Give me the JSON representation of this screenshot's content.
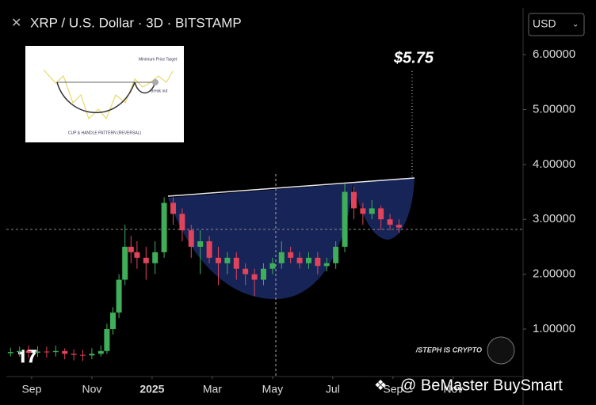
{
  "chart_data": {
    "type": "candlestick",
    "title": "XRP / U.S. Dollar · 3D · BITSTAMP",
    "currency": "USD",
    "up_color": "#3fae5a",
    "down_color": "#e0435a",
    "xlim": [
      -0.84,
      16.32
    ],
    "xticks": [
      {
        "value": 0,
        "label": "Sep"
      },
      {
        "value": 2,
        "label": "Nov"
      },
      {
        "value": 4,
        "label": "2025"
      },
      {
        "value": 6,
        "label": "Mar"
      },
      {
        "value": 8,
        "label": "May"
      },
      {
        "value": 10,
        "label": "Jul"
      },
      {
        "value": 12,
        "label": "Sep"
      },
      {
        "value": 14,
        "label": "Nov"
      }
    ],
    "ylim": [
      0.15,
      6.78
    ],
    "yticks": [
      {
        "value": 1,
        "label": "1.00000"
      },
      {
        "value": 2,
        "label": "2.00000"
      },
      {
        "value": 3,
        "label": "3.00000"
      },
      {
        "value": 4,
        "label": "4.00000"
      },
      {
        "value": 5,
        "label": "5.00000"
      },
      {
        "value": 6,
        "label": "6.00000"
      }
    ],
    "candles": [
      [
        -0.7,
        0.56,
        0.66,
        0.5,
        0.58
      ],
      [
        -0.4,
        0.58,
        0.68,
        0.5,
        0.6
      ],
      [
        -0.1,
        0.6,
        0.7,
        0.47,
        0.57
      ],
      [
        0.2,
        0.57,
        0.69,
        0.49,
        0.59
      ],
      [
        0.5,
        0.59,
        0.68,
        0.48,
        0.58
      ],
      [
        0.8,
        0.58,
        0.7,
        0.5,
        0.6
      ],
      [
        1.1,
        0.6,
        0.65,
        0.45,
        0.55
      ],
      [
        1.4,
        0.55,
        0.63,
        0.43,
        0.53
      ],
      [
        1.7,
        0.53,
        0.62,
        0.42,
        0.52
      ],
      [
        2.0,
        0.52,
        0.65,
        0.45,
        0.55
      ],
      [
        2.3,
        0.55,
        0.7,
        0.5,
        0.6
      ],
      [
        2.5,
        0.6,
        1.1,
        0.55,
        1.0
      ],
      [
        2.7,
        1.0,
        1.4,
        0.9,
        1.3
      ],
      [
        2.9,
        1.3,
        2.0,
        1.2,
        1.9
      ],
      [
        3.1,
        1.9,
        2.9,
        1.8,
        2.5
      ],
      [
        3.3,
        2.5,
        2.7,
        2.2,
        2.4
      ],
      [
        3.5,
        2.4,
        2.6,
        2.1,
        2.3
      ],
      [
        3.8,
        2.3,
        2.5,
        1.9,
        2.2
      ],
      [
        4.1,
        2.2,
        2.6,
        2.0,
        2.4
      ],
      [
        4.4,
        2.4,
        3.4,
        2.3,
        3.3
      ],
      [
        4.7,
        3.3,
        3.4,
        2.9,
        3.1
      ],
      [
        5.0,
        3.1,
        3.2,
        2.6,
        2.8
      ],
      [
        5.3,
        2.8,
        2.9,
        2.3,
        2.5
      ],
      [
        5.6,
        2.5,
        2.8,
        2.0,
        2.6
      ],
      [
        5.9,
        2.6,
        2.7,
        2.2,
        2.3
      ],
      [
        6.2,
        2.3,
        2.5,
        1.8,
        2.2
      ],
      [
        6.5,
        2.2,
        2.4,
        2.0,
        2.3
      ],
      [
        6.8,
        2.3,
        2.4,
        1.9,
        2.1
      ],
      [
        7.1,
        2.1,
        2.2,
        1.8,
        2.0
      ],
      [
        7.4,
        2.0,
        2.1,
        1.6,
        1.9
      ],
      [
        7.7,
        1.9,
        2.2,
        1.8,
        2.1
      ],
      [
        8.0,
        2.1,
        2.3,
        2.0,
        2.2
      ],
      [
        8.3,
        2.2,
        2.6,
        2.1,
        2.4
      ],
      [
        8.6,
        2.4,
        2.5,
        2.2,
        2.3
      ],
      [
        8.9,
        2.3,
        2.4,
        2.1,
        2.2
      ],
      [
        9.2,
        2.2,
        2.4,
        2.1,
        2.3
      ],
      [
        9.5,
        2.3,
        2.4,
        2.0,
        2.15
      ],
      [
        9.8,
        2.15,
        2.3,
        2.05,
        2.2
      ],
      [
        10.1,
        2.2,
        2.6,
        2.1,
        2.5
      ],
      [
        10.4,
        2.5,
        3.65,
        2.4,
        3.5
      ],
      [
        10.7,
        3.5,
        3.6,
        3.0,
        3.2
      ],
      [
        11.0,
        3.2,
        3.3,
        2.9,
        3.1
      ],
      [
        11.3,
        3.1,
        3.35,
        3.0,
        3.2
      ],
      [
        11.6,
        3.2,
        3.25,
        2.8,
        3.0
      ],
      [
        11.9,
        3.0,
        3.1,
        2.8,
        2.9
      ],
      [
        12.2,
        2.9,
        3.0,
        2.75,
        2.85
      ]
    ],
    "annotations": {
      "target": "$5.75",
      "source": "/STEPH IS CRYPTO",
      "watermark": "@ BeMaster BuySmart"
    },
    "inset": {
      "title": "CUP & HANDLE PATTERN (REVERSAL)",
      "target": "Minimum Price Target",
      "breakout": "Break out"
    }
  }
}
